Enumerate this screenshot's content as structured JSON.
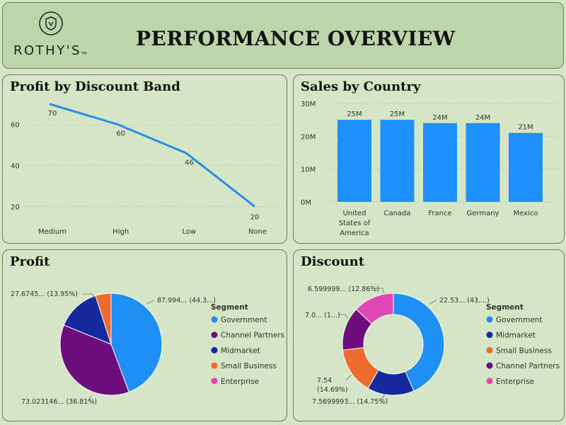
{
  "header": {
    "title": "PERFORMANCE OVERVIEW",
    "brand": "ROTHY'S",
    "brand_tm": "TM"
  },
  "panels": {
    "profit_by_discount": "Profit by Discount Band",
    "sales_by_country": "Sales by Country",
    "profit": "Profit",
    "discount": "Discount"
  },
  "chart_data": [
    {
      "type": "line",
      "title": "Profit by Discount Band",
      "categories": [
        "Medium",
        "High",
        "Low",
        "None"
      ],
      "values": [
        70,
        60,
        46,
        20
      ],
      "data_labels": [
        "70",
        "60",
        "46",
        "20"
      ],
      "y_ticks": [
        20,
        40,
        60
      ],
      "ylim": [
        15,
        72
      ],
      "color": "#2b8cf0",
      "grid": true
    },
    {
      "type": "bar",
      "title": "Sales by Country",
      "categories": [
        [
          "United",
          "States of",
          "America"
        ],
        [
          "Canada"
        ],
        [
          "France"
        ],
        [
          "Germany"
        ],
        [
          "Mexico"
        ]
      ],
      "values": [
        25,
        25,
        24,
        24,
        21
      ],
      "data_labels": [
        "25M",
        "25M",
        "24M",
        "24M",
        "21M"
      ],
      "y_ticks": [
        0,
        10,
        20,
        30
      ],
      "y_tick_labels": [
        "0M",
        "10M",
        "20M",
        "30M"
      ],
      "ylim": [
        0,
        30
      ],
      "color": "#1e90ff",
      "grid": true
    },
    {
      "type": "pie",
      "title": "Profit",
      "legend_title": "Segment",
      "legend_position": "right",
      "slices": [
        {
          "name": "Government",
          "value": 44.3,
          "color": "#1f8ff5",
          "label": "87.994... (44.3...)"
        },
        {
          "name": "Channel Partners",
          "value": 36.81,
          "color": "#6c0e7e",
          "label": "73.023146... (36.81%)"
        },
        {
          "name": "Midmarket",
          "value": 13.95,
          "color": "#162a9e",
          "label": "27.6745... (13.95%)"
        },
        {
          "name": "Small Business",
          "value": 4.94,
          "color": "#ee6b2f",
          "label": ""
        },
        {
          "name": "Enterprise",
          "value": 0,
          "color": "#e048b5",
          "label": ""
        }
      ]
    },
    {
      "type": "pie",
      "title": "Discount",
      "donut": true,
      "legend_title": "Segment",
      "legend_position": "right",
      "slices": [
        {
          "name": "Government",
          "value": 43.0,
          "color": "#1f8ff5",
          "label": "22.53... (43....)"
        },
        {
          "name": "Midmarket",
          "value": 14.75,
          "color": "#162a9e",
          "label": "7.5699993... (14.75%)"
        },
        {
          "name": "Small Business",
          "value": 14.69,
          "color": "#ee6b2f",
          "label": "7.54\n(14.69%)"
        },
        {
          "name": "Channel Partners",
          "value": 13.7,
          "color": "#6c0e7e",
          "label": "7.0... (1...)"
        },
        {
          "name": "Enterprise",
          "value": 12.86,
          "color": "#e048b5",
          "label": "6.599999... (12.86%)"
        }
      ]
    }
  ]
}
